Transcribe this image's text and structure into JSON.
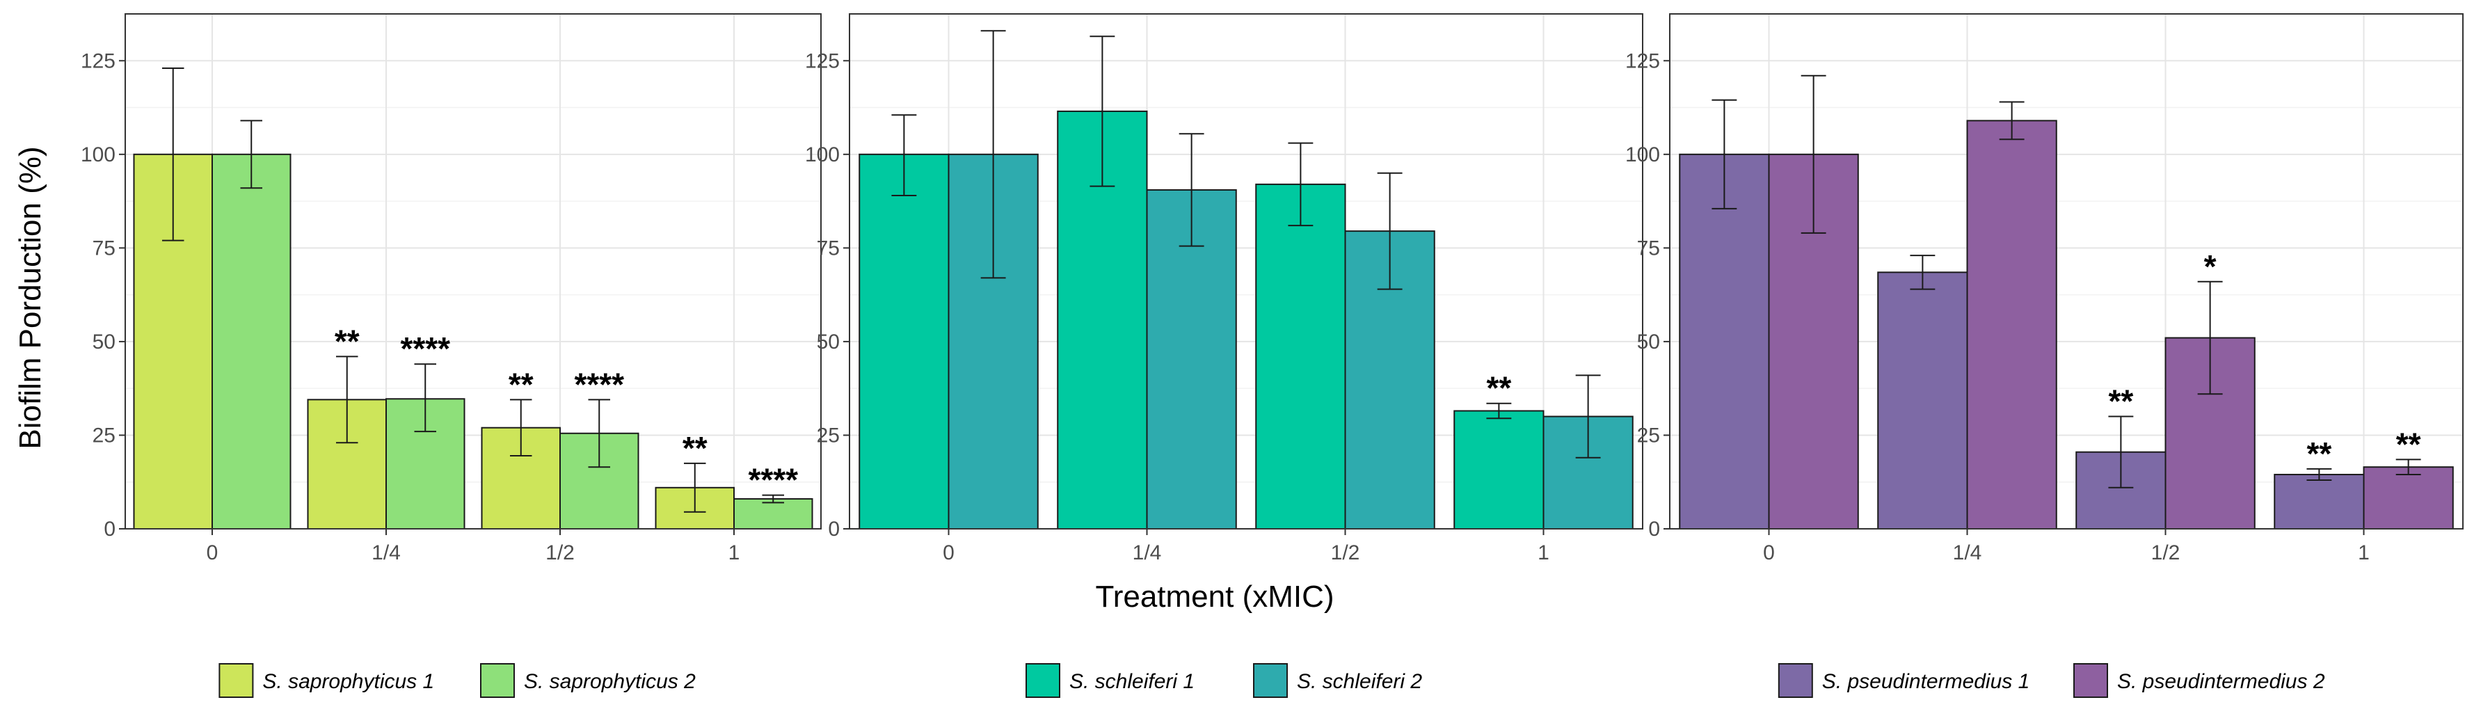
{
  "figure": {
    "ylabel": "Biofilm Porduction (%)",
    "xlabel": "Treatment (xMIC)"
  },
  "chart_data": [
    {
      "type": "bar",
      "title": "",
      "xlabel": "Treatment (xMIC)",
      "ylabel": "Biofilm Porduction (%)",
      "ylim": [
        0,
        137.5
      ],
      "yticks": [
        0,
        25,
        50,
        75,
        100,
        125
      ],
      "grid": true,
      "categories": [
        "0",
        "1/4",
        "1/2",
        "1"
      ],
      "series": [
        {
          "name": "S. saprophyticus 1",
          "color": "#cde55a",
          "values": [
            100,
            34.5,
            27,
            11
          ],
          "err_low": [
            77,
            23,
            19.5,
            4.5
          ],
          "err_high": [
            123,
            46,
            34.5,
            17.5
          ],
          "sig": [
            "",
            "**",
            "**",
            "**"
          ]
        },
        {
          "name": "S. saprophyticus 2",
          "color": "#8ee07a",
          "values": [
            100,
            34.7,
            25.5,
            8
          ],
          "err_low": [
            91,
            26,
            16.5,
            7
          ],
          "err_high": [
            109,
            44,
            34.5,
            9
          ],
          "sig": [
            "",
            "****",
            "****",
            "****"
          ]
        }
      ],
      "legend": [
        "S. saprophyticus 1",
        "S. saprophyticus 2"
      ],
      "legend_position": "bottom"
    },
    {
      "type": "bar",
      "title": "",
      "ylim": [
        0,
        137.5
      ],
      "yticks": [
        0,
        25,
        50,
        75,
        100,
        125
      ],
      "grid": true,
      "categories": [
        "0",
        "1/4",
        "1/2",
        "1"
      ],
      "series": [
        {
          "name": "S. schleiferi 1",
          "color": "#00c9a0",
          "values": [
            100,
            111.5,
            92,
            31.5
          ],
          "err_low": [
            89,
            91.5,
            81,
            29.5
          ],
          "err_high": [
            110.5,
            131.5,
            103,
            33.5
          ],
          "sig": [
            "",
            "",
            "",
            "**"
          ]
        },
        {
          "name": "S. schleiferi 2",
          "color": "#2eabae",
          "values": [
            100,
            90.5,
            79.5,
            30
          ],
          "err_low": [
            67,
            75.5,
            64,
            19
          ],
          "err_high": [
            133,
            105.5,
            95,
            41
          ],
          "sig": [
            "",
            "",
            "",
            ""
          ]
        }
      ],
      "legend": [
        "S. schleiferi 1",
        "S. schleiferi 2"
      ],
      "legend_position": "bottom"
    },
    {
      "type": "bar",
      "title": "",
      "ylim": [
        0,
        137.5
      ],
      "yticks": [
        0,
        25,
        50,
        75,
        100,
        125
      ],
      "grid": true,
      "categories": [
        "0",
        "1/4",
        "1/2",
        "1"
      ],
      "series": [
        {
          "name": "S. pseudintermedius 1",
          "color": "#7d6aa6",
          "values": [
            100,
            68.5,
            20.5,
            14.5
          ],
          "err_low": [
            85.5,
            64,
            11,
            13
          ],
          "err_high": [
            114.5,
            73,
            30,
            16
          ],
          "sig": [
            "",
            "",
            "**",
            "**"
          ]
        },
        {
          "name": "S. pseudintermedius 2",
          "color": "#8e60a0",
          "values": [
            100,
            109,
            51,
            16.5
          ],
          "err_low": [
            79,
            104,
            36,
            14.5
          ],
          "err_high": [
            121,
            114,
            66,
            18.5
          ],
          "sig": [
            "",
            "",
            "*",
            "**"
          ]
        }
      ],
      "legend": [
        "S. pseudintermedius 1",
        "S. pseudintermedius 2"
      ],
      "legend_position": "bottom"
    }
  ]
}
